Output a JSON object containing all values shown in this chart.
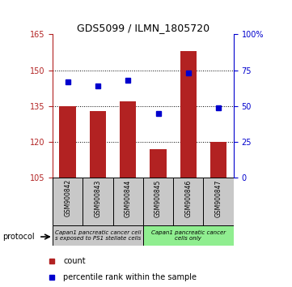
{
  "title": "GDS5099 / ILMN_1805720",
  "samples": [
    "GSM900842",
    "GSM900843",
    "GSM900844",
    "GSM900845",
    "GSM900846",
    "GSM900847"
  ],
  "counts": [
    135,
    133,
    137,
    117,
    158,
    120
  ],
  "percentiles": [
    67,
    64,
    68,
    45,
    73,
    49
  ],
  "ylim_left": [
    105,
    165
  ],
  "ylim_right": [
    0,
    100
  ],
  "yticks_left": [
    105,
    120,
    135,
    150,
    165
  ],
  "yticks_right": [
    0,
    25,
    50,
    75,
    100
  ],
  "ytick_labels_right": [
    "0",
    "25",
    "50",
    "75",
    "100%"
  ],
  "bar_color": "#B22222",
  "dot_color": "#0000CD",
  "group1_color": "#c8c8c8",
  "group2_color": "#90EE90",
  "group1_label": "Capan1 pancreatic cancer cell\ns exposed to PS1 stellate cells",
  "group2_label": "Capan1 pancreatic cancer\ncells only",
  "protocol_label": "protocol",
  "legend_count_label": "count",
  "legend_pct_label": "percentile rank within the sample",
  "axis_left_color": "#B22222",
  "axis_right_color": "#0000CD",
  "gridline_y": [
    120,
    135,
    150
  ]
}
